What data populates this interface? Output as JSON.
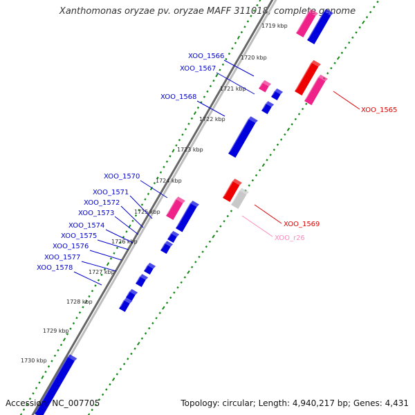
{
  "title": "Xanthomonas oryzae pv. oryzae MAFF 311018, complete genome",
  "footer": {
    "accession": "Accession: NC_007705",
    "summary": "Topology: circular; Length: 4,940,217 bp; Genes: 4,431"
  },
  "colors": {
    "forward_cds": "#0000dd",
    "pink_cds": "#ee2288",
    "reverse_cds": "#ee0000",
    "trna": "#c8c8c8",
    "backbone": "#666666",
    "tick_dot": "#118811",
    "label_blue": "#0000cc",
    "label_red": "#dd0000",
    "label_pink": "#ff88bb"
  },
  "scale_labels": [
    "1719 kbp",
    "1720 kbp",
    "1721 kbp",
    "1722 kbp",
    "1723 kbp",
    "1724 kbp",
    "1725 kbp",
    "1726 kbp",
    "1727 kbp",
    "1728 kbp",
    "1729 kbp",
    "1730 kbp"
  ],
  "gene_labels": [
    {
      "id": "XOO_1566",
      "strand": "forward"
    },
    {
      "id": "XOO_1567",
      "strand": "forward"
    },
    {
      "id": "XOO_1568",
      "strand": "forward"
    },
    {
      "id": "XOO_1570",
      "strand": "forward"
    },
    {
      "id": "XOO_1571",
      "strand": "forward"
    },
    {
      "id": "XOO_1572",
      "strand": "forward"
    },
    {
      "id": "XOO_1573",
      "strand": "forward"
    },
    {
      "id": "XOO_1574",
      "strand": "forward"
    },
    {
      "id": "XOO_1575",
      "strand": "forward"
    },
    {
      "id": "XOO_1576",
      "strand": "forward"
    },
    {
      "id": "XOO_1577",
      "strand": "forward"
    },
    {
      "id": "XOO_1578",
      "strand": "forward"
    },
    {
      "id": "XOO_1565",
      "strand": "reverse"
    },
    {
      "id": "XOO_1569",
      "strand": "reverse"
    },
    {
      "id": "XOO_r26",
      "strand": "reverse-rna"
    }
  ]
}
